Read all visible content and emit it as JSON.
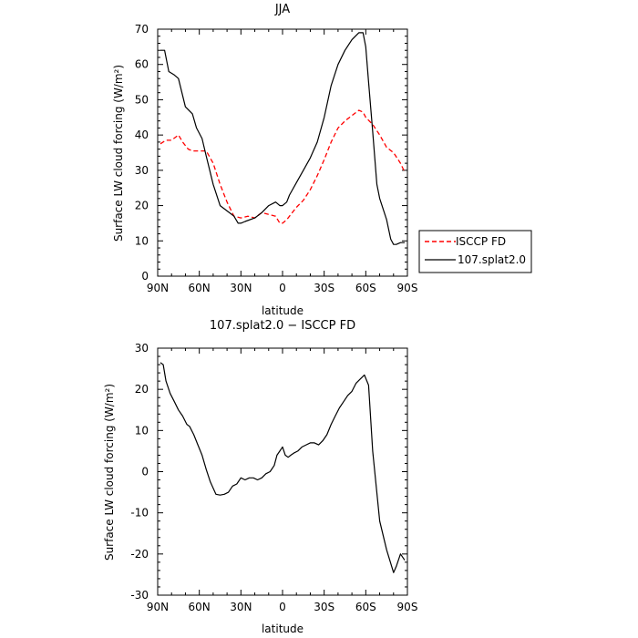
{
  "chart_data": [
    {
      "type": "line",
      "title": "JJA",
      "xlabel": "latitude",
      "ylabel": "Surface LW cloud forcing (W/m²)",
      "xlim": [
        90,
        -90
      ],
      "ylim": [
        0,
        70
      ],
      "x_ticks": [
        {
          "value": 90,
          "label": "90N"
        },
        {
          "value": 60,
          "label": "60N"
        },
        {
          "value": 30,
          "label": "30N"
        },
        {
          "value": 0,
          "label": "0"
        },
        {
          "value": -30,
          "label": "30S"
        },
        {
          "value": -60,
          "label": "60S"
        },
        {
          "value": -90,
          "label": "90S"
        }
      ],
      "y_ticks": [
        0,
        10,
        20,
        30,
        40,
        50,
        60,
        70
      ],
      "legend_position": "right",
      "series": [
        {
          "name": "ISCCP FD",
          "color": "#ff0000",
          "dash": "dashed",
          "x": [
            88,
            84,
            80,
            75,
            72,
            68,
            65,
            60,
            55,
            50,
            45,
            40,
            35,
            30,
            25,
            20,
            15,
            10,
            5,
            2,
            0,
            -3,
            -5,
            -10,
            -15,
            -20,
            -25,
            -30,
            -35,
            -40,
            -45,
            -50,
            -55,
            -58,
            -60,
            -65,
            -70,
            -75,
            -80,
            -85,
            -88
          ],
          "y": [
            37.5,
            38.5,
            38.5,
            40,
            38,
            36,
            35.5,
            35.5,
            35.5,
            32,
            26,
            21,
            17,
            16.5,
            17,
            16.5,
            18,
            17.5,
            17,
            15,
            15,
            16,
            17,
            19.5,
            21.5,
            24.5,
            28.5,
            33,
            38,
            42,
            44,
            45.5,
            47,
            46.5,
            45,
            43,
            40,
            36.5,
            35,
            32,
            29.5
          ]
        },
        {
          "name": "107.splat2.0",
          "color": "#000000",
          "dash": "solid",
          "x": [
            88,
            85,
            82,
            78,
            75,
            70,
            65,
            62,
            58,
            55,
            50,
            45,
            40,
            35,
            32,
            30,
            27,
            20,
            15,
            10,
            5,
            2,
            0,
            -3,
            -5,
            -10,
            -15,
            -20,
            -25,
            -30,
            -35,
            -40,
            -45,
            -50,
            -55,
            -58,
            -60,
            -62,
            -65,
            -68,
            -70,
            -75,
            -78,
            -80,
            -82,
            -85,
            -88
          ],
          "y": [
            64,
            64,
            58,
            57,
            56,
            48,
            46,
            42,
            39,
            34,
            26,
            20,
            18.5,
            17,
            15,
            15,
            15.5,
            16.5,
            18,
            20,
            21,
            20,
            20,
            21,
            23,
            26.5,
            30,
            33.5,
            38,
            45,
            54,
            60,
            64,
            67,
            69,
            69,
            65,
            55,
            41,
            26,
            22,
            16,
            10.5,
            9,
            9,
            9.5,
            9.5
          ]
        }
      ]
    },
    {
      "type": "line",
      "title": "107.splat2.0 − ISCCP FD",
      "xlabel": "latitude",
      "ylabel": "Surface LW cloud forcing (W/m²)",
      "xlim": [
        90,
        -90
      ],
      "ylim": [
        -30,
        30
      ],
      "x_ticks": [
        {
          "value": 90,
          "label": "90N"
        },
        {
          "value": 60,
          "label": "60N"
        },
        {
          "value": 30,
          "label": "30N"
        },
        {
          "value": 0,
          "label": "0"
        },
        {
          "value": -30,
          "label": "30S"
        },
        {
          "value": -60,
          "label": "60S"
        },
        {
          "value": -90,
          "label": "90S"
        }
      ],
      "y_ticks": [
        -30,
        -20,
        -10,
        0,
        10,
        20,
        30
      ],
      "series": [
        {
          "color": "#000000",
          "dash": "solid",
          "x": [
            88,
            86,
            84,
            81,
            78,
            75,
            72,
            69,
            67,
            64,
            61,
            58,
            55,
            52,
            48,
            45,
            42,
            39,
            36,
            33,
            30,
            27,
            24,
            21,
            18,
            15,
            12,
            9,
            6,
            4,
            2,
            0,
            -2,
            -4,
            -6,
            -8,
            -11,
            -14,
            -17,
            -20,
            -23,
            -26,
            -29,
            -32,
            -35,
            -38,
            -41,
            -44,
            -47,
            -50,
            -53,
            -56,
            -59,
            -62,
            -65,
            -70,
            -75,
            -80,
            -82,
            -85,
            -88
          ],
          "y": [
            26.5,
            26,
            22,
            19,
            17,
            15,
            13.5,
            11.5,
            11,
            9,
            6.5,
            4,
            0.5,
            -2.5,
            -5.5,
            -5.7,
            -5.5,
            -5,
            -3.5,
            -3,
            -1.5,
            -2,
            -1.5,
            -1.5,
            -2,
            -1.5,
            -0.5,
            0,
            1.5,
            4,
            5,
            6,
            4,
            3.5,
            4,
            4.5,
            5,
            6,
            6.5,
            7,
            7,
            6.5,
            7.5,
            9,
            11.5,
            13.5,
            15.5,
            17,
            18.5,
            19.5,
            21.5,
            22.5,
            23.5,
            21,
            5,
            -12,
            -19,
            -24.5,
            -23,
            -20,
            -21.5
          ]
        }
      ]
    }
  ]
}
